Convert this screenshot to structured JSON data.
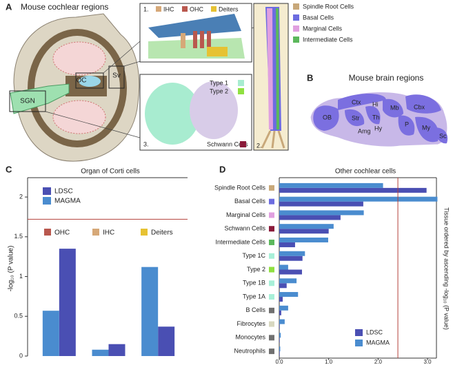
{
  "panel_a": {
    "letter": "A",
    "title": "Mouse cochlear regions",
    "labels": {
      "oc": "OC",
      "sv": "Sv",
      "sgn": "SGN"
    },
    "inset1": {
      "number": "1.",
      "legend": [
        "IHC",
        "OHC",
        "Deiters"
      ]
    },
    "inset2": {
      "number": "2."
    },
    "inset3": {
      "number": "3.",
      "legend": [
        "Type 1",
        "Type 2"
      ],
      "schwann": "Schwann Cells"
    },
    "legend": [
      "Spindle Root Cells",
      "Basal Cells",
      "Marginal Cells",
      "Intermediate Cells"
    ]
  },
  "panel_b": {
    "letter": "B",
    "title": "Mouse brain regions",
    "regions": [
      "OB",
      "Ctx",
      "Hi",
      "Mb",
      "Cbx",
      "Str",
      "Th",
      "Amg",
      "Hy",
      "P",
      "My",
      "Sc"
    ]
  },
  "panel_c": {
    "letter": "C"
  },
  "panel_d": {
    "letter": "D"
  },
  "chart_data": [
    {
      "type": "bar",
      "title": "Organ of Corti cells",
      "y_label": "-log₁₀ (P value)",
      "categories": [
        "OHC",
        "IHC",
        "Deiters"
      ],
      "category_colors": [
        "#b9584e",
        "#d6a878",
        "#e6c233"
      ],
      "series": [
        {
          "name": "LDSC",
          "color": "#4a4fb3",
          "values": [
            1.35,
            0.15,
            0.37
          ]
        },
        {
          "name": "MAGMA",
          "color": "#4a8ccf",
          "values": [
            0.57,
            0.08,
            1.12
          ]
        }
      ],
      "ylim": [
        0,
        2.2
      ],
      "yticks": [
        0,
        0.5,
        1,
        1.5,
        2
      ],
      "threshold": 1.72,
      "threshold_color": "#b3403a"
    },
    {
      "type": "barh",
      "title": "Other cochlear cells",
      "y_label": "Tissue ordered by ascending -log₁₀ (P value)",
      "categories": [
        "Spindle Root Cells",
        "Basal Cells",
        "Marginal Cells",
        "Schwann Cells",
        "Intermediate Cells",
        "Type 1C",
        "Type 2",
        "Type 1B",
        "Type 1A",
        "B Cells",
        "Fibrocytes",
        "Monocytes",
        "Neutrophils"
      ],
      "category_colors": [
        "#c8a87a",
        "#6c6ce0",
        "#e0a0e0",
        "#8a1a3a",
        "#5cb85c",
        "#a8f0d8",
        "#90e040",
        "#a8f0d8",
        "#a8f0d8",
        "#707070",
        "#d8d8c0",
        "#707070",
        "#707070"
      ],
      "series": [
        {
          "name": "LDSC",
          "color": "#4a4fb3",
          "values": [
            2.98,
            1.7,
            1.24,
            1.0,
            0.32,
            0.47,
            0.46,
            0.15,
            0.07,
            0.04,
            0.01,
            0.01,
            0.01
          ]
        },
        {
          "name": "MAGMA",
          "color": "#4a8ccf",
          "values": [
            2.1,
            3.2,
            1.71,
            1.1,
            0.99,
            0.52,
            0.18,
            0.35,
            0.38,
            0.18,
            0.11,
            0.03,
            0.02
          ]
        }
      ],
      "xlim": [
        0,
        3.25
      ],
      "xticks": [
        {
          "value": 0,
          "label": "0.0"
        },
        {
          "value": 1,
          "label": "1.0"
        },
        {
          "value": 2,
          "label": "2.0"
        },
        {
          "value": 3,
          "label": "3.0"
        }
      ],
      "threshold": 2.4,
      "threshold_color": "#b3403a"
    }
  ]
}
